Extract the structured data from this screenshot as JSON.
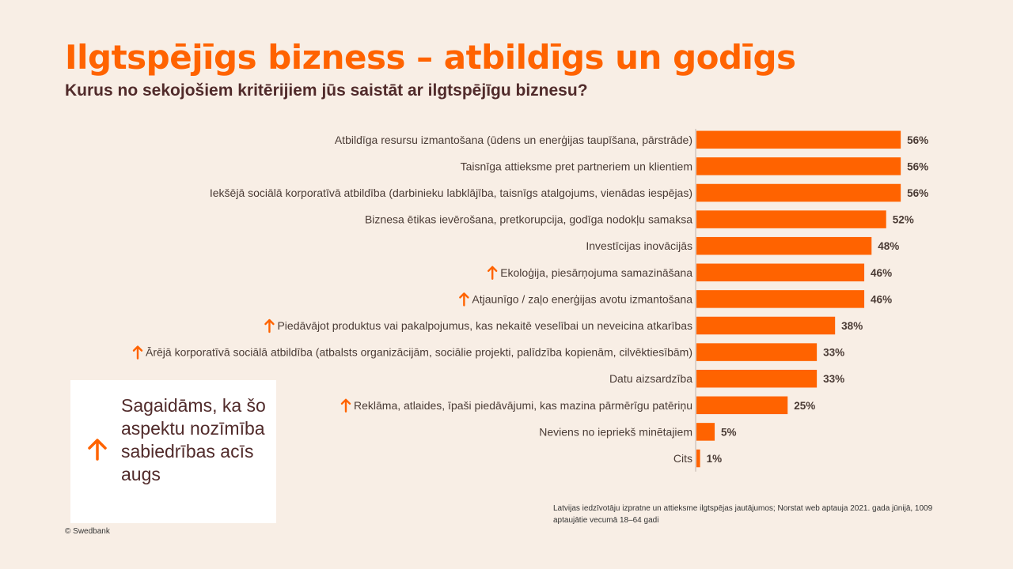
{
  "title": "Ilgtspējīgs bizness – atbildīgs un godīgs",
  "subtitle": "Kurus no sekojošiem kritērijiem jūs saistāt ar ilgtspējīgu biznesu?",
  "colors": {
    "accent": "#ff6300",
    "background": "#f8eee5",
    "text": "#4a3b35"
  },
  "chart_data": {
    "type": "bar",
    "orientation": "horizontal",
    "categories": [
      "Atbildīga resursu izmantošana (ūdens un enerģijas taupīšana, pārstrāde)",
      "Taisnīga attieksme pret partneriem un klientiem",
      "Iekšējā sociālā korporatīvā atbildība (darbinieku labklājība, taisnīgs atalgojums, vienādas iespējas)",
      "Biznesa ētikas ievērošana, pretkorupcija, godīga nodokļu samaksa",
      "Investīcijas inovācijās",
      "Ekoloģija, piesārņojuma samazināšana",
      "Atjaunīgo / zaļo enerģijas avotu izmantošana",
      "Piedāvājot produktus vai pakalpojumus, kas nekaitē veselībai un neveicina atkarības",
      "Ārējā korporatīvā sociālā atbildība (atbalsts organizācijām, sociālie projekti, palīdzība kopienām, cilvēktiesībām)",
      "Datu aizsardzība",
      "Reklāma, atlaides, īpaši piedāvājumi, kas mazina pārmērīgu patēriņu",
      "Neviens no iepriekš minētajiem",
      "Cits"
    ],
    "values": [
      56,
      56,
      56,
      52,
      48,
      46,
      46,
      38,
      33,
      33,
      25,
      5,
      1
    ],
    "value_labels": [
      "56%",
      "56%",
      "56%",
      "52%",
      "48%",
      "46%",
      "46%",
      "38%",
      "33%",
      "33%",
      "25%",
      "5%",
      "1%"
    ],
    "rising": [
      false,
      false,
      false,
      false,
      false,
      true,
      true,
      true,
      true,
      false,
      true,
      false,
      false
    ],
    "bar_color": "#ff6300",
    "xlim": [
      0,
      60
    ],
    "grid": false,
    "legend": "none"
  },
  "note": {
    "icon": "up-arrow-icon",
    "text": "Sagaidāms, ka šo aspektu nozīmība sabiedrības acīs augs"
  },
  "source": "Latvijas iedzīvotāju izpratne un attieksme ilgtspējas jautājumos; Norstat web aptauja 2021. gada jūnijā, 1009 aptaujātie vecumā 18–64 gadi",
  "copyright": "© Swedbank"
}
